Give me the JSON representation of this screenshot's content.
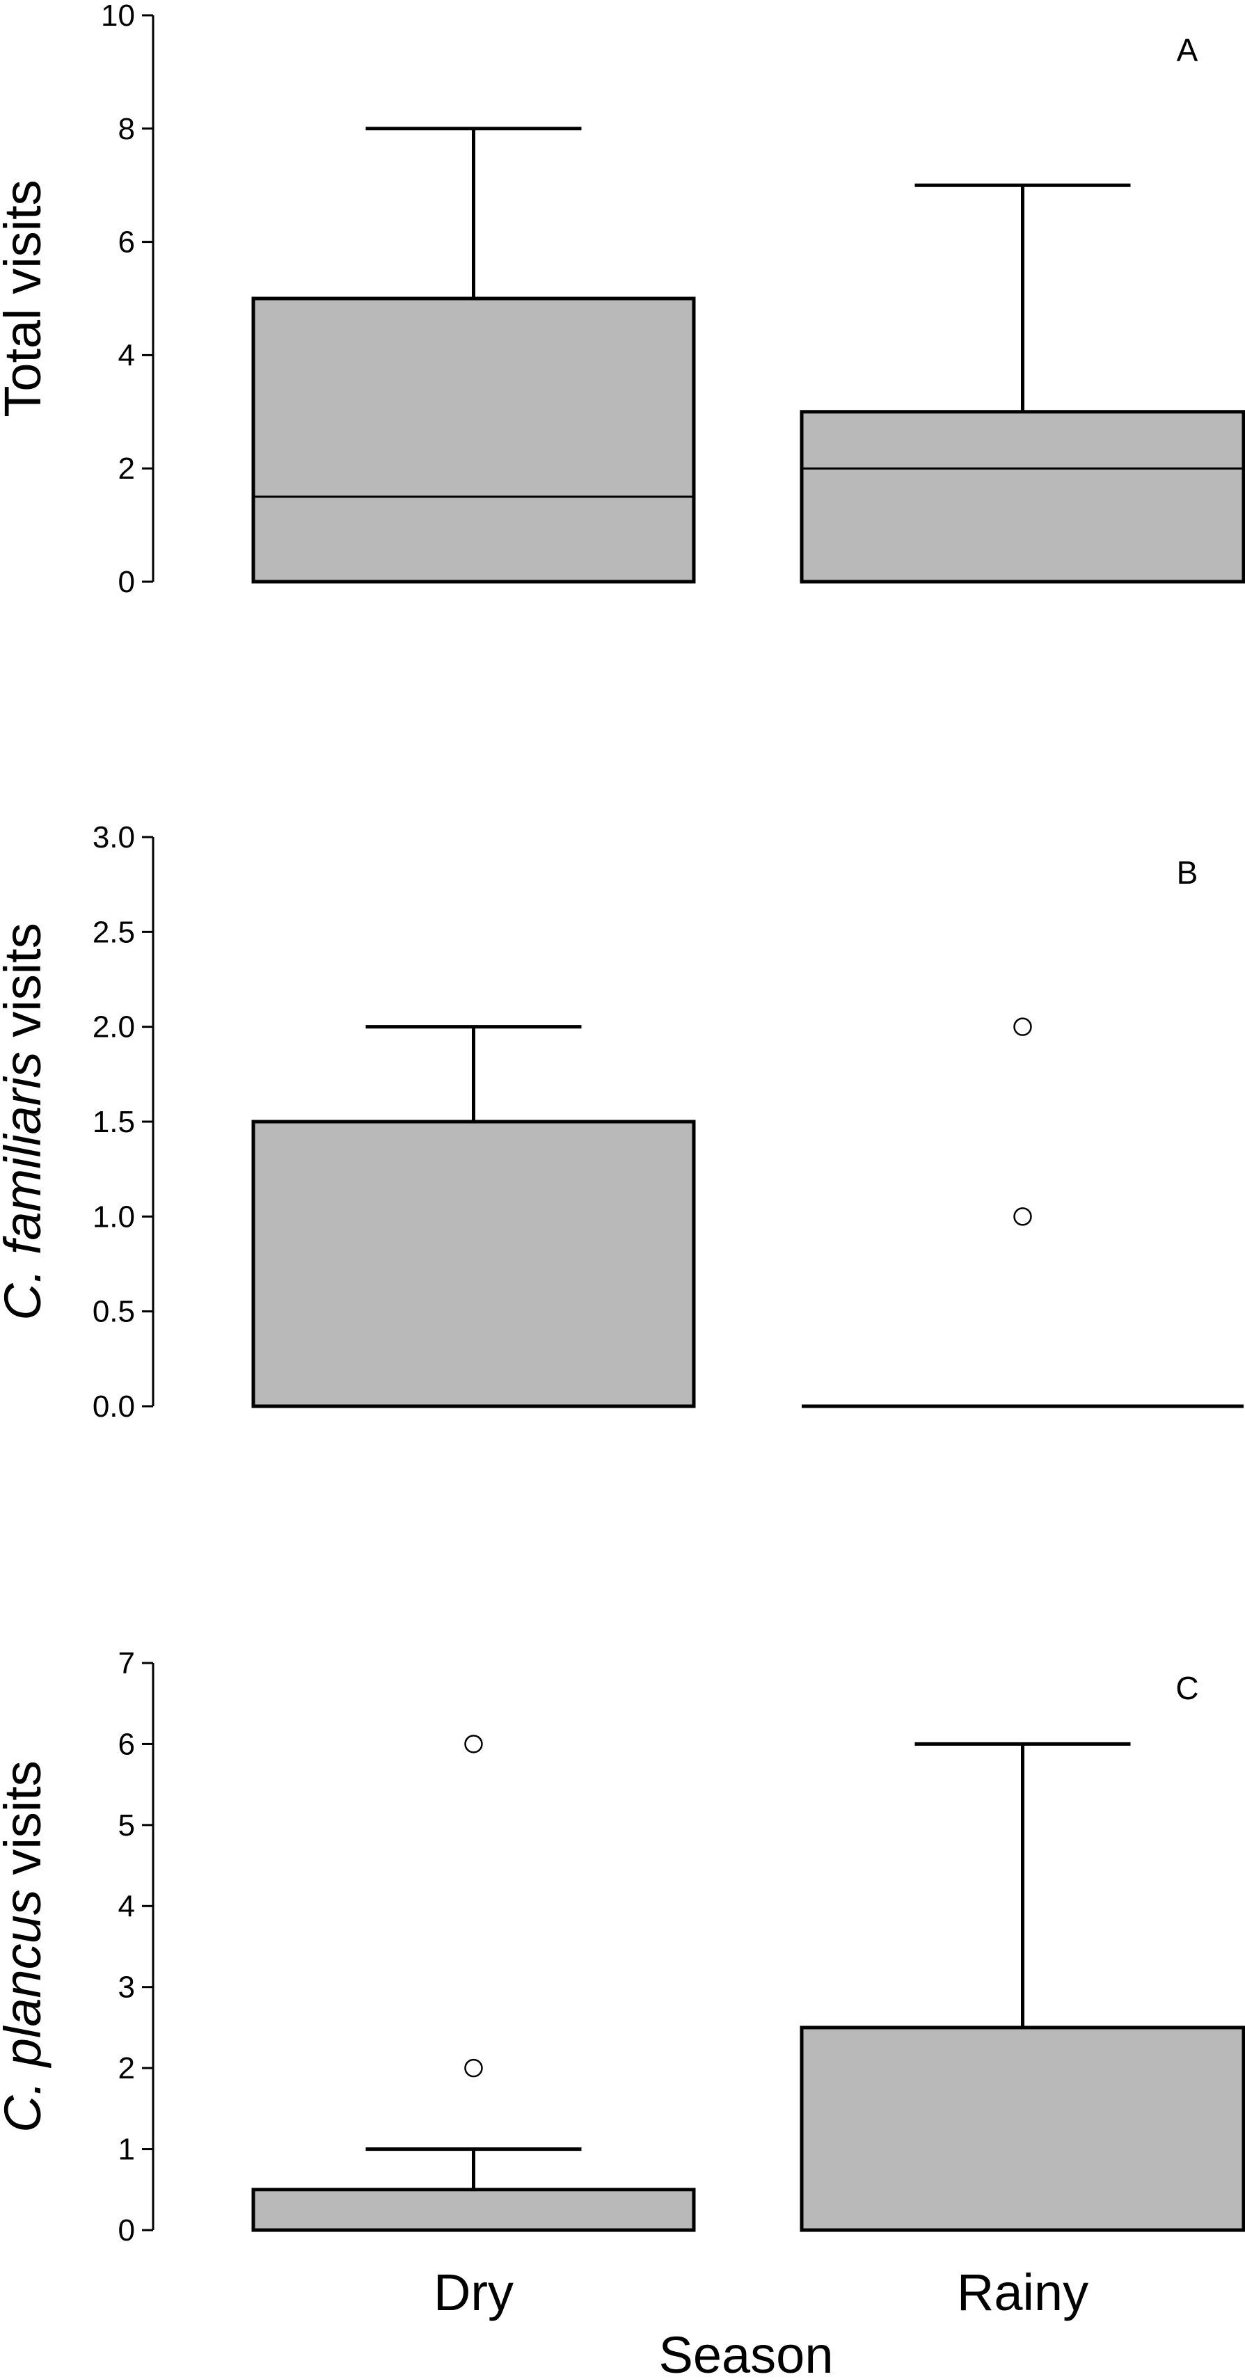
{
  "chart_data": [
    {
      "type": "box",
      "panel": "A",
      "ylabel_parts": [
        {
          "text": "Total visits",
          "italic": false
        }
      ],
      "ylim": [
        0,
        10
      ],
      "yticks": [
        "0",
        "2",
        "4",
        "6",
        "8",
        "10"
      ],
      "categories": [
        "Dry",
        "Rainy"
      ],
      "boxes": [
        {
          "category": "Dry",
          "q1": 0,
          "median": 1.5,
          "q3": 5,
          "whisker_low": 0,
          "whisker_high": 8,
          "outliers": []
        },
        {
          "category": "Rainy",
          "q1": 0,
          "median": 2,
          "q3": 3,
          "whisker_low": 0,
          "whisker_high": 7,
          "outliers": []
        }
      ]
    },
    {
      "type": "box",
      "panel": "B",
      "ylabel_parts": [
        {
          "text": "C. ",
          "italic": true
        },
        {
          "text": "familiaris",
          "italic": true
        },
        {
          "text": " visits",
          "italic": false
        }
      ],
      "ylim": [
        0,
        3
      ],
      "yticks": [
        "0.0",
        "0.5",
        "1.0",
        "1.5",
        "2.0",
        "2.5",
        "3.0"
      ],
      "categories": [
        "Dry",
        "Rainy"
      ],
      "boxes": [
        {
          "category": "Dry",
          "q1": 0,
          "median": 0,
          "q3": 1.5,
          "whisker_low": 0,
          "whisker_high": 2,
          "outliers": []
        },
        {
          "category": "Rainy",
          "q1": 0,
          "median": 0,
          "q3": 0,
          "whisker_low": 0,
          "whisker_high": 0,
          "outliers": [
            1,
            2
          ]
        }
      ]
    },
    {
      "type": "box",
      "panel": "C",
      "ylabel_parts": [
        {
          "text": "C. ",
          "italic": true
        },
        {
          "text": "plancus",
          "italic": true
        },
        {
          "text": " visits",
          "italic": false
        }
      ],
      "ylim": [
        0,
        7
      ],
      "yticks": [
        "0",
        "1",
        "2",
        "3",
        "4",
        "5",
        "6",
        "7"
      ],
      "categories": [
        "Dry",
        "Rainy"
      ],
      "boxes": [
        {
          "category": "Dry",
          "q1": 0,
          "median": 0,
          "q3": 0.5,
          "whisker_low": 0,
          "whisker_high": 1,
          "outliers": [
            2,
            6
          ]
        },
        {
          "category": "Rainy",
          "q1": 0,
          "median": 0,
          "q3": 2.5,
          "whisker_low": 0,
          "whisker_high": 6,
          "outliers": []
        }
      ]
    }
  ],
  "xlabel": "Season",
  "colors": {
    "box_fill": "#b9b9b9",
    "stroke": "#000000",
    "outlier_fill": "#ffffff"
  }
}
